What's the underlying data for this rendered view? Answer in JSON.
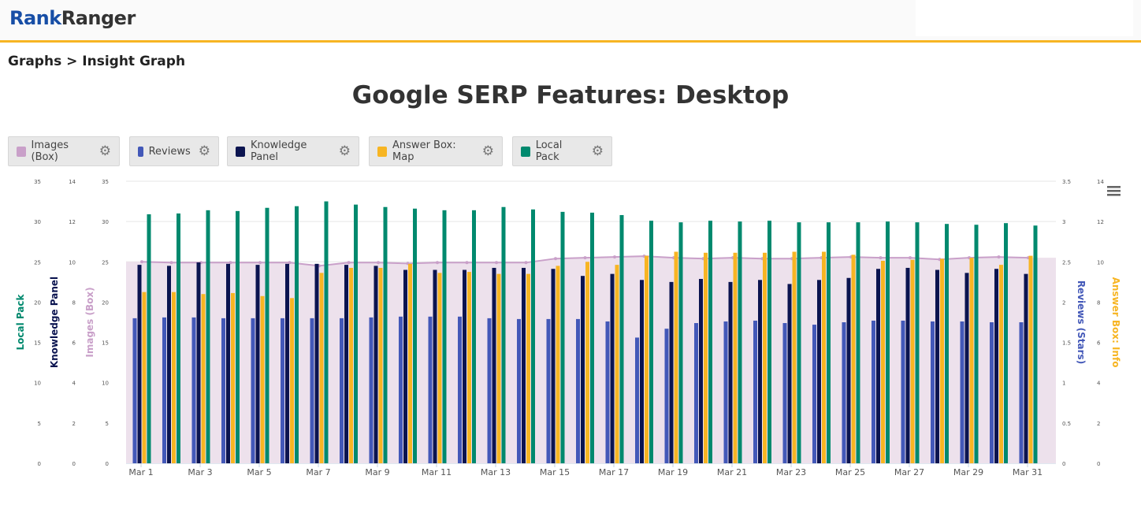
{
  "header": {
    "logo_part1": "Rank",
    "logo_part2": "Ranger"
  },
  "breadcrumb": "Graphs > Insight Graph",
  "chart_title": "Google SERP Features: Desktop",
  "legend": [
    {
      "label": "Images (Box)",
      "color": "#c9a0c9",
      "icon": "gear-icon"
    },
    {
      "label": "Reviews",
      "color": "#4358b8",
      "icon": "gear-icon"
    },
    {
      "label": "Knowledge Panel",
      "color": "#0b1450",
      "icon": "gear-icon"
    },
    {
      "label": "Answer Box: Map",
      "color": "#f7b523",
      "icon": "gear-icon"
    },
    {
      "label": "Local Pack",
      "color": "#00896e",
      "icon": "gear-icon"
    }
  ],
  "menu_icon": "hamburger-menu-icon",
  "chart_data": {
    "type": "bar",
    "categories": [
      "Mar 1",
      "Mar 2",
      "Mar 3",
      "Mar 4",
      "Mar 5",
      "Mar 6",
      "Mar 7",
      "Mar 8",
      "Mar 9",
      "Mar 10",
      "Mar 11",
      "Mar 12",
      "Mar 13",
      "Mar 14",
      "Mar 15",
      "Mar 16",
      "Mar 17",
      "Mar 18",
      "Mar 19",
      "Mar 20",
      "Mar 21",
      "Mar 22",
      "Mar 23",
      "Mar 24",
      "Mar 25",
      "Mar 26",
      "Mar 27",
      "Mar 28",
      "Mar 29",
      "Mar 30",
      "Mar 31"
    ],
    "x_tick_labels": [
      "Mar 1",
      "Mar 3",
      "Mar 5",
      "Mar 7",
      "Mar 9",
      "Mar 11",
      "Mar 13",
      "Mar 15",
      "Mar 17",
      "Mar 19",
      "Mar 21",
      "Mar 23",
      "Mar 25",
      "Mar 27",
      "Mar 29",
      "Mar 31"
    ],
    "axes": {
      "local_pack": {
        "label": "Local Pack",
        "range": [
          0,
          35
        ],
        "ticks": [
          0,
          5,
          10,
          15,
          20,
          25,
          30,
          35
        ],
        "color": "#00896e",
        "side": "left"
      },
      "knowledge_panel": {
        "label": "Knowledge Panel",
        "range": [
          0,
          14
        ],
        "ticks": [
          0,
          2,
          4,
          6,
          8,
          10,
          12,
          14
        ],
        "color": "#0b1450",
        "side": "left"
      },
      "images": {
        "label": "Images (Box)",
        "range": [
          0,
          35
        ],
        "ticks": [
          0,
          5,
          10,
          15,
          20,
          25,
          30,
          35
        ],
        "color": "#c9a0c9",
        "side": "left"
      },
      "reviews": {
        "label": "Reviews (Stars)",
        "range": [
          0,
          3.5
        ],
        "ticks": [
          0,
          0.5,
          1,
          1.5,
          2,
          2.5,
          3,
          3.5
        ],
        "color": "#4358b8",
        "side": "right"
      },
      "answer_box": {
        "label": "Answer Box: Info",
        "range": [
          0,
          14
        ],
        "ticks": [
          0,
          2,
          4,
          6,
          8,
          10,
          12,
          14
        ],
        "color": "#f7b523",
        "side": "right"
      }
    },
    "grid": true,
    "series": [
      {
        "name": "Images (Box)",
        "type": "area",
        "axis": "images",
        "color": "#c9a0c9",
        "values": [
          25.0,
          24.9,
          24.9,
          24.9,
          24.9,
          24.9,
          24.5,
          24.9,
          24.9,
          24.8,
          24.9,
          24.9,
          24.9,
          24.9,
          25.4,
          25.5,
          25.6,
          25.7,
          25.5,
          25.4,
          25.5,
          25.4,
          25.4,
          25.5,
          25.6,
          25.5,
          25.5,
          25.3,
          25.5,
          25.6,
          25.5
        ]
      },
      {
        "name": "Reviews",
        "type": "bar",
        "axis": "reviews",
        "color": "#4358b8",
        "values": [
          1.8,
          1.81,
          1.81,
          1.8,
          1.8,
          1.8,
          1.8,
          1.8,
          1.81,
          1.82,
          1.82,
          1.82,
          1.8,
          1.79,
          1.79,
          1.79,
          1.76,
          1.56,
          1.67,
          1.74,
          1.76,
          1.77,
          1.74,
          1.72,
          1.75,
          1.77,
          1.77,
          1.76,
          1.76,
          1.75,
          1.75
        ]
      },
      {
        "name": "Knowledge Panel",
        "type": "bar",
        "axis": "knowledge_panel",
        "color": "#0b1450",
        "values": [
          9.85,
          9.8,
          9.97,
          9.9,
          9.85,
          9.9,
          9.9,
          9.85,
          9.8,
          9.6,
          9.6,
          9.6,
          9.7,
          9.7,
          9.65,
          9.3,
          9.4,
          9.1,
          9.0,
          9.15,
          9.0,
          9.1,
          8.9,
          9.1,
          9.2,
          9.65,
          9.7,
          9.6,
          9.45,
          9.65,
          9.4
        ]
      },
      {
        "name": "Answer Box: Map",
        "type": "bar",
        "axis": "answer_box",
        "color": "#f7b523",
        "values": [
          8.5,
          8.5,
          8.4,
          8.45,
          8.3,
          8.2,
          9.45,
          9.7,
          9.7,
          9.9,
          9.45,
          9.5,
          9.4,
          9.4,
          9.8,
          10.0,
          9.85,
          10.3,
          10.5,
          10.45,
          10.45,
          10.45,
          10.5,
          10.5,
          10.35,
          10.05,
          10.1,
          10.15,
          10.2,
          9.85,
          10.3
        ]
      },
      {
        "name": "Local Pack",
        "type": "bar",
        "axis": "local_pack",
        "color": "#00896e",
        "values": [
          30.9,
          31.0,
          31.4,
          31.3,
          31.7,
          31.9,
          32.5,
          32.1,
          31.8,
          31.6,
          31.4,
          31.4,
          31.8,
          31.5,
          31.2,
          31.1,
          30.8,
          30.1,
          29.9,
          30.1,
          30.0,
          30.1,
          29.9,
          29.9,
          29.9,
          30.0,
          29.9,
          29.7,
          29.6,
          29.8,
          29.5
        ]
      }
    ]
  }
}
